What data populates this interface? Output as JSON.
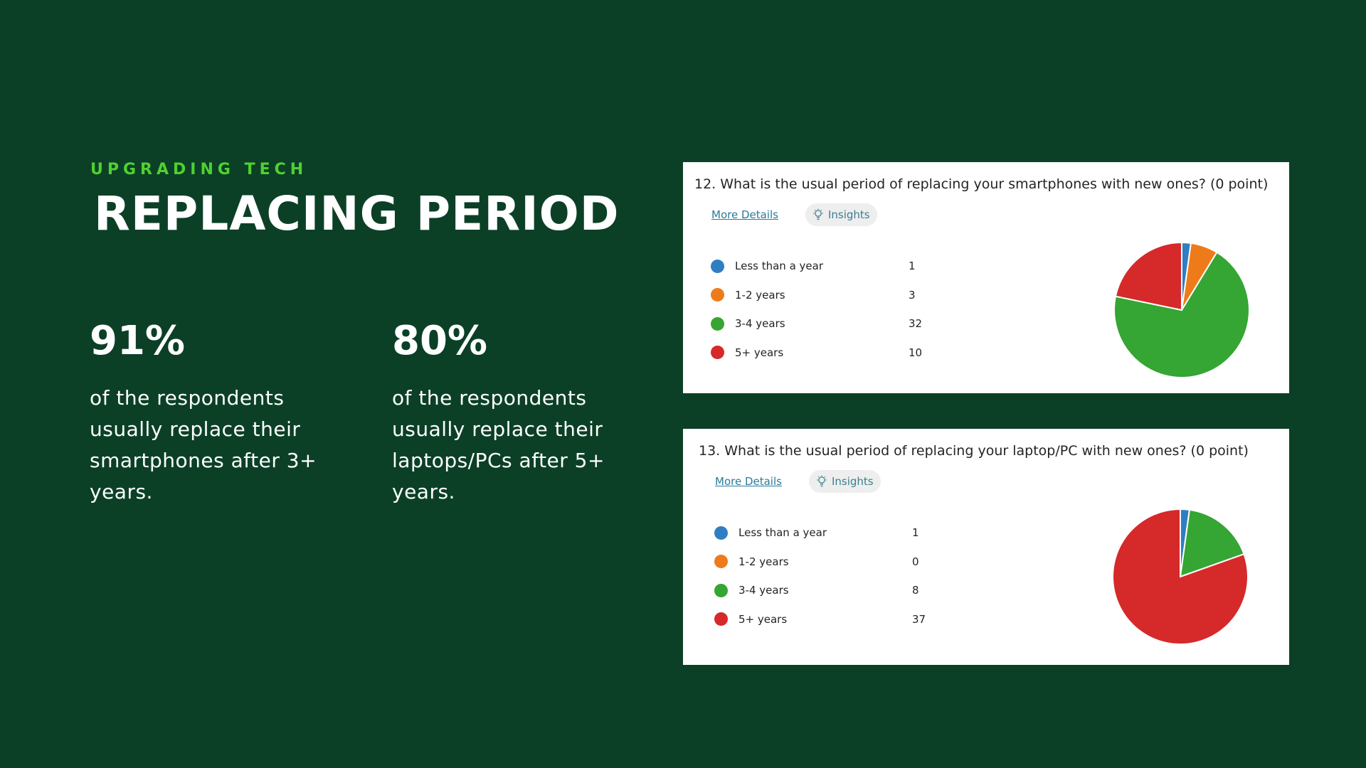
{
  "header": {
    "eyebrow": "UPGRADING TECH",
    "title": "REPLACING PERIOD"
  },
  "stats": [
    {
      "value": "91%",
      "description": "of the respondents usually replace their smartphones after 3+ years."
    },
    {
      "value": "80%",
      "description": "of the respondents usually replace their laptops/PCs after 5+ years."
    }
  ],
  "cards": [
    {
      "question": "12.  What is the usual period of replacing your smartphones with new ones? (0 point)",
      "more_details": "More Details",
      "insights": "Insights",
      "icon": "lightbulb-icon"
    },
    {
      "question": "13.  What is the usual period of replacing your laptop/PC with new ones? (0 point)",
      "more_details": "More Details",
      "insights": "Insights",
      "icon": "lightbulb-icon"
    }
  ],
  "chart_data": [
    {
      "type": "pie",
      "categories": [
        "Less than a year",
        "1-2 years",
        "3-4 years",
        "5+ years"
      ],
      "values": [
        1,
        3,
        32,
        10
      ],
      "colors": [
        "#2f7ec2",
        "#ee7b1a",
        "#35a533",
        "#d5292a"
      ]
    },
    {
      "type": "pie",
      "categories": [
        "Less than a year",
        "1-2 years",
        "3-4 years",
        "5+ years"
      ],
      "values": [
        1,
        0,
        8,
        37
      ],
      "colors": [
        "#2f7ec2",
        "#ee7b1a",
        "#35a533",
        "#d5292a"
      ]
    }
  ]
}
